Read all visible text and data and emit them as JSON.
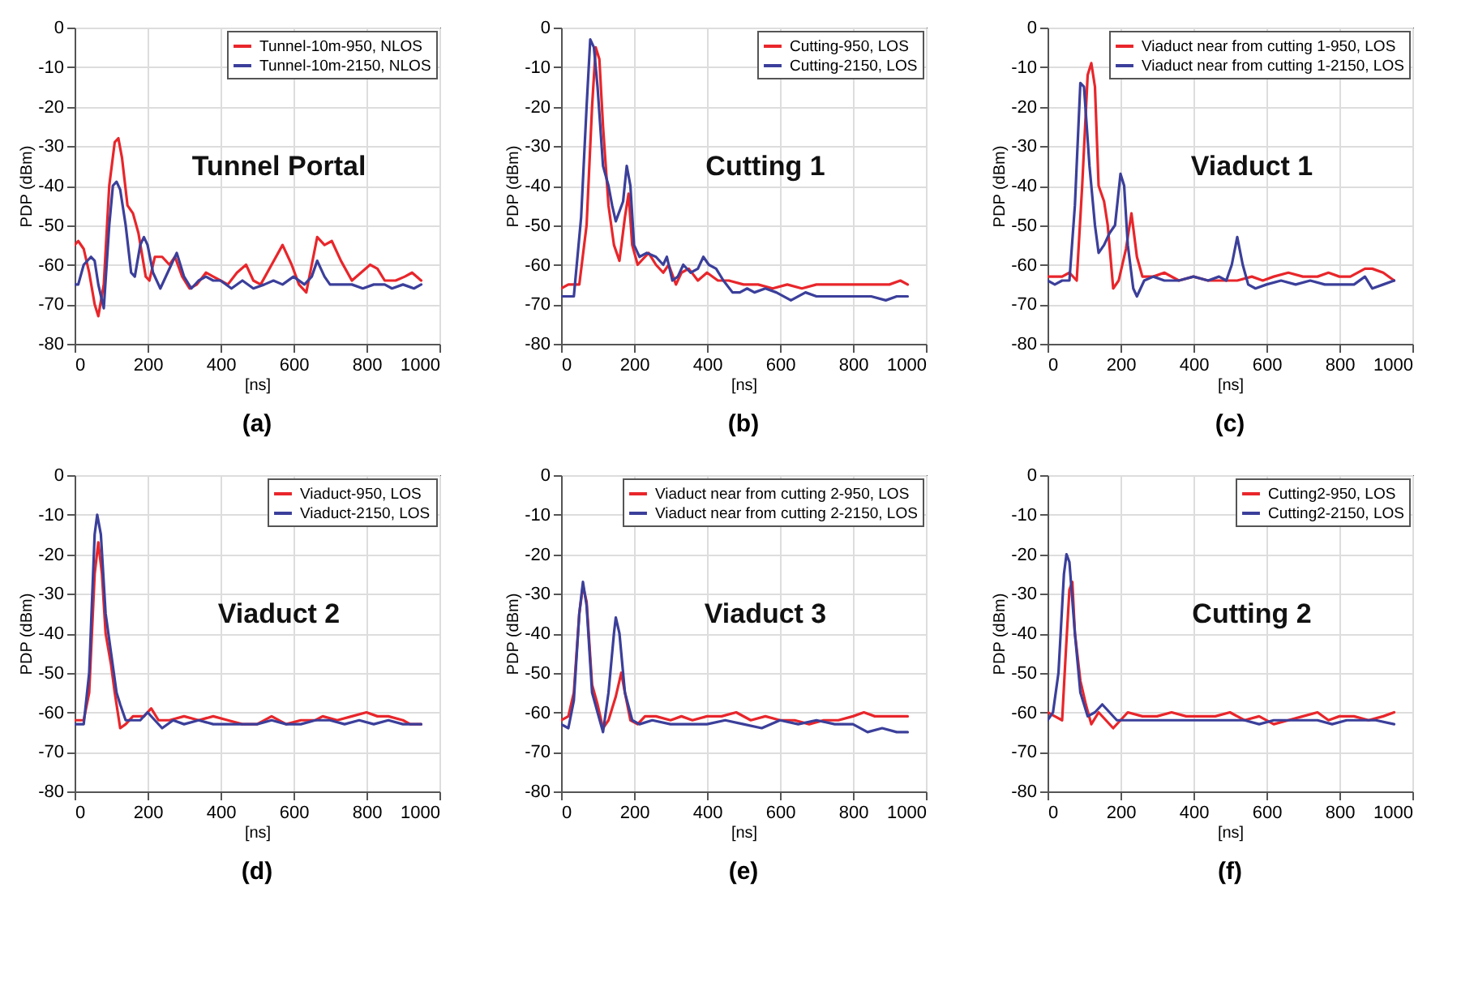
{
  "chart_data": [
    {
      "type": "line",
      "title": "(a)",
      "xlabel": "[ns]",
      "ylabel": "PDP (dBm)",
      "xlim": [
        0,
        1000
      ],
      "ylim": [
        -80,
        0
      ],
      "xticks": [
        0,
        200,
        400,
        600,
        800,
        1000
      ],
      "yticks": [
        -80,
        -70,
        -60,
        -50,
        -40,
        -30,
        -20,
        -10,
        0
      ],
      "grid": true,
      "legend": "top right",
      "annotations": [
        "Tunnel Portal"
      ],
      "series": [
        {
          "name": "Tunnel-10m-950, NLOS",
          "color": "#e8262b",
          "x": [
            0,
            10,
            25,
            40,
            55,
            65,
            80,
            95,
            110,
            120,
            130,
            145,
            160,
            175,
            195,
            205,
            220,
            240,
            260,
            275,
            295,
            315,
            335,
            360,
            380,
            400,
            420,
            445,
            470,
            490,
            510,
            540,
            570,
            595,
            615,
            635,
            650,
            665,
            685,
            705,
            730,
            760,
            785,
            810,
            830,
            850,
            880,
            905,
            925,
            950
          ],
          "values": [
            -55,
            -54,
            -56,
            -62,
            -70,
            -73,
            -65,
            -40,
            -29,
            -28,
            -33,
            -45,
            -47,
            -52,
            -63,
            -64,
            -58,
            -58,
            -60,
            -58,
            -63,
            -66,
            -65,
            -62,
            -63,
            -64,
            -65,
            -62,
            -60,
            -64,
            -65,
            -60,
            -55,
            -60,
            -65,
            -67,
            -60,
            -53,
            -55,
            -54,
            -59,
            -64,
            -62,
            -60,
            -61,
            -64,
            -64,
            -63,
            -62,
            -64
          ]
        },
        {
          "name": "Tunnel-10m-2150, NLOS",
          "color": "#3b3f9a",
          "x": [
            0,
            10,
            25,
            45,
            55,
            65,
            80,
            95,
            105,
            115,
            125,
            140,
            155,
            165,
            180,
            190,
            200,
            215,
            235,
            255,
            280,
            300,
            320,
            340,
            360,
            380,
            400,
            430,
            460,
            490,
            520,
            545,
            570,
            600,
            630,
            650,
            665,
            685,
            700,
            730,
            760,
            790,
            820,
            850,
            870,
            900,
            930,
            950
          ],
          "values": [
            -65,
            -65,
            -60,
            -58,
            -59,
            -65,
            -71,
            -50,
            -40,
            -39,
            -41,
            -50,
            -62,
            -63,
            -55,
            -53,
            -55,
            -62,
            -66,
            -62,
            -57,
            -63,
            -66,
            -64,
            -63,
            -64,
            -64,
            -66,
            -64,
            -66,
            -65,
            -64,
            -65,
            -63,
            -65,
            -63,
            -59,
            -63,
            -65,
            -65,
            -65,
            -66,
            -65,
            -65,
            -66,
            -65,
            -66,
            -65
          ]
        }
      ]
    },
    {
      "type": "line",
      "title": "(b)",
      "xlabel": "[ns]",
      "ylabel": "PDP (dBm)",
      "xlim": [
        0,
        1000
      ],
      "ylim": [
        -80,
        0
      ],
      "xticks": [
        0,
        200,
        400,
        600,
        800,
        1000
      ],
      "yticks": [
        -80,
        -70,
        -60,
        -50,
        -40,
        -30,
        -20,
        -10,
        0
      ],
      "grid": true,
      "legend": "top right",
      "annotations": [
        "Cutting 1"
      ],
      "series": [
        {
          "name": "Cutting-950, LOS",
          "color": "#e8262b",
          "x": [
            0,
            20,
            50,
            70,
            85,
            95,
            105,
            115,
            130,
            145,
            160,
            175,
            185,
            195,
            210,
            230,
            240,
            260,
            280,
            295,
            315,
            330,
            350,
            375,
            400,
            430,
            460,
            500,
            540,
            580,
            620,
            660,
            700,
            750,
            800,
            850,
            900,
            930,
            950
          ],
          "values": [
            -66,
            -65,
            -65,
            -50,
            -20,
            -5,
            -8,
            -25,
            -45,
            -55,
            -59,
            -48,
            -42,
            -55,
            -60,
            -58,
            -57,
            -60,
            -62,
            -60,
            -65,
            -62,
            -61,
            -64,
            -62,
            -64,
            -64,
            -65,
            -65,
            -66,
            -65,
            -66,
            -65,
            -65,
            -65,
            -65,
            -65,
            -64,
            -65
          ]
        },
        {
          "name": "Cutting-2150, LOS",
          "color": "#3b3f9a",
          "x": [
            0,
            20,
            35,
            55,
            70,
            80,
            90,
            100,
            115,
            130,
            140,
            150,
            170,
            180,
            190,
            200,
            215,
            235,
            260,
            280,
            290,
            305,
            320,
            335,
            355,
            375,
            390,
            405,
            425,
            445,
            470,
            490,
            510,
            530,
            560,
            590,
            630,
            670,
            700,
            750,
            800,
            850,
            890,
            920,
            950
          ],
          "values": [
            -68,
            -68,
            -68,
            -48,
            -20,
            -3,
            -5,
            -15,
            -35,
            -40,
            -45,
            -49,
            -44,
            -35,
            -40,
            -55,
            -58,
            -57,
            -58,
            -60,
            -58,
            -64,
            -63,
            -60,
            -62,
            -61,
            -58,
            -60,
            -61,
            -64,
            -67,
            -67,
            -66,
            -67,
            -66,
            -67,
            -69,
            -67,
            -68,
            -68,
            -68,
            -68,
            -69,
            -68,
            -68
          ]
        }
      ]
    },
    {
      "type": "line",
      "title": "(c)",
      "xlabel": "[ns]",
      "ylabel": "PDP (dBm)",
      "xlim": [
        0,
        1000
      ],
      "ylim": [
        -80,
        0
      ],
      "xticks": [
        0,
        200,
        400,
        600,
        800,
        1000
      ],
      "yticks": [
        -80,
        -70,
        -60,
        -50,
        -40,
        -30,
        -20,
        -10,
        0
      ],
      "grid": true,
      "legend": "top right",
      "annotations": [
        "Viaduct 1"
      ],
      "series": [
        {
          "name": "Viaduct near from cutting 1-950, LOS",
          "color": "#e8262b",
          "x": [
            0,
            40,
            60,
            80,
            95,
            110,
            120,
            130,
            140,
            155,
            165,
            180,
            195,
            215,
            230,
            245,
            260,
            290,
            320,
            360,
            400,
            440,
            480,
            520,
            560,
            590,
            620,
            660,
            700,
            740,
            770,
            800,
            830,
            870,
            890,
            920,
            950
          ],
          "values": [
            -63,
            -63,
            -62,
            -64,
            -40,
            -12,
            -9,
            -15,
            -40,
            -44,
            -50,
            -66,
            -64,
            -56,
            -47,
            -58,
            -63,
            -63,
            -62,
            -64,
            -63,
            -64,
            -64,
            -64,
            -63,
            -64,
            -63,
            -62,
            -63,
            -63,
            -62,
            -63,
            -63,
            -61,
            -61,
            -62,
            -64
          ]
        },
        {
          "name": "Viaduct near from cutting 1-2150, LOS",
          "color": "#3b3f9a",
          "x": [
            0,
            20,
            40,
            60,
            75,
            90,
            100,
            115,
            130,
            140,
            155,
            170,
            185,
            200,
            210,
            220,
            235,
            245,
            265,
            290,
            320,
            360,
            400,
            440,
            470,
            490,
            505,
            520,
            535,
            550,
            570,
            600,
            640,
            680,
            720,
            760,
            800,
            840,
            870,
            890,
            920,
            950
          ],
          "values": [
            -64,
            -65,
            -64,
            -64,
            -45,
            -14,
            -15,
            -35,
            -50,
            -57,
            -55,
            -52,
            -50,
            -37,
            -40,
            -55,
            -66,
            -68,
            -64,
            -63,
            -64,
            -64,
            -63,
            -64,
            -63,
            -64,
            -60,
            -53,
            -60,
            -65,
            -66,
            -65,
            -64,
            -65,
            -64,
            -65,
            -65,
            -65,
            -63,
            -66,
            -65,
            -64
          ]
        }
      ]
    },
    {
      "type": "line",
      "title": "(d)",
      "xlabel": "[ns]",
      "ylabel": "PDP (dBm)",
      "xlim": [
        0,
        1000
      ],
      "ylim": [
        -80,
        0
      ],
      "xticks": [
        0,
        200,
        400,
        600,
        800,
        1000
      ],
      "yticks": [
        -80,
        -70,
        -60,
        -50,
        -40,
        -30,
        -20,
        -10,
        0
      ],
      "grid": true,
      "legend": "top right",
      "annotations": [
        "Viaduct 2"
      ],
      "series": [
        {
          "name": "Viaduct-950, LOS",
          "color": "#e8262b",
          "x": [
            0,
            25,
            40,
            55,
            65,
            75,
            85,
            100,
            110,
            125,
            140,
            160,
            190,
            210,
            230,
            260,
            300,
            340,
            380,
            420,
            460,
            500,
            540,
            580,
            620,
            660,
            680,
            720,
            760,
            800,
            830,
            860,
            900,
            920,
            950
          ],
          "values": [
            -62,
            -62,
            -55,
            -25,
            -17,
            -25,
            -40,
            -48,
            -55,
            -64,
            -63,
            -61,
            -61,
            -59,
            -62,
            -62,
            -61,
            -62,
            -61,
            -62,
            -63,
            -63,
            -61,
            -63,
            -62,
            -62,
            -61,
            -62,
            -61,
            -60,
            -61,
            -61,
            -62,
            -63,
            -63
          ]
        },
        {
          "name": "Viaduct-2150, LOS",
          "color": "#3b3f9a",
          "x": [
            0,
            25,
            40,
            55,
            62,
            72,
            85,
            100,
            115,
            125,
            140,
            160,
            180,
            200,
            220,
            240,
            270,
            300,
            340,
            380,
            420,
            460,
            500,
            540,
            580,
            620,
            660,
            700,
            740,
            780,
            820,
            860,
            900,
            950
          ],
          "values": [
            -63,
            -63,
            -50,
            -15,
            -10,
            -15,
            -35,
            -45,
            -55,
            -58,
            -62,
            -62,
            -62,
            -60,
            -62,
            -64,
            -62,
            -63,
            -62,
            -63,
            -63,
            -63,
            -63,
            -62,
            -63,
            -63,
            -62,
            -62,
            -63,
            -62,
            -63,
            -62,
            -63,
            -63
          ]
        }
      ]
    },
    {
      "type": "line",
      "title": "(e)",
      "xlabel": "[ns]",
      "ylabel": "PDP (dBm)",
      "xlim": [
        0,
        1000
      ],
      "ylim": [
        -80,
        0
      ],
      "xticks": [
        0,
        200,
        400,
        600,
        800,
        1000
      ],
      "yticks": [
        -80,
        -70,
        -60,
        -50,
        -40,
        -30,
        -20,
        -10,
        0
      ],
      "grid": true,
      "legend": "top right",
      "annotations": [
        "Viaduct 3"
      ],
      "series": [
        {
          "name": "Viaduct near from cutting 2-950, LOS",
          "color": "#e8262b",
          "x": [
            0,
            20,
            35,
            50,
            60,
            70,
            85,
            100,
            115,
            130,
            150,
            165,
            175,
            190,
            210,
            230,
            260,
            300,
            330,
            360,
            400,
            440,
            480,
            520,
            560,
            600,
            640,
            680,
            720,
            760,
            800,
            830,
            860,
            900,
            950
          ],
          "values": [
            -62,
            -61,
            -55,
            -35,
            -28,
            -32,
            -53,
            -58,
            -64,
            -62,
            -56,
            -50,
            -55,
            -62,
            -63,
            -61,
            -61,
            -62,
            -61,
            -62,
            -61,
            -61,
            -60,
            -62,
            -61,
            -62,
            -62,
            -63,
            -62,
            -62,
            -61,
            -60,
            -61,
            -61,
            -61
          ]
        },
        {
          "name": "Viaduct near from cutting 2-2150, LOS",
          "color": "#3b3f9a",
          "x": [
            0,
            20,
            35,
            50,
            60,
            70,
            85,
            100,
            115,
            130,
            145,
            150,
            160,
            175,
            195,
            215,
            250,
            300,
            350,
            400,
            450,
            500,
            550,
            600,
            650,
            700,
            750,
            800,
            840,
            880,
            920,
            950
          ],
          "values": [
            -63,
            -64,
            -57,
            -35,
            -27,
            -33,
            -55,
            -60,
            -65,
            -55,
            -40,
            -36,
            -40,
            -55,
            -62,
            -63,
            -62,
            -63,
            -63,
            -63,
            -62,
            -63,
            -64,
            -62,
            -63,
            -62,
            -63,
            -63,
            -65,
            -64,
            -65,
            -65
          ]
        }
      ]
    },
    {
      "type": "line",
      "title": "(f)",
      "xlabel": "[ns]",
      "ylabel": "PDP (dBm)",
      "xlim": [
        0,
        1000
      ],
      "ylim": [
        -80,
        0
      ],
      "xticks": [
        0,
        200,
        400,
        600,
        800,
        1000
      ],
      "yticks": [
        -80,
        -70,
        -60,
        -50,
        -40,
        -30,
        -20,
        -10,
        0
      ],
      "grid": true,
      "legend": "top right",
      "annotations": [
        "Cutting 2"
      ],
      "series": [
        {
          "name": "Cutting2-950, LOS",
          "color": "#e8262b",
          "x": [
            0,
            20,
            40,
            50,
            60,
            68,
            75,
            90,
            105,
            120,
            140,
            160,
            180,
            200,
            220,
            260,
            300,
            340,
            380,
            420,
            460,
            500,
            540,
            580,
            620,
            660,
            700,
            740,
            770,
            800,
            840,
            880,
            920,
            950
          ],
          "values": [
            -60,
            -61,
            -62,
            -45,
            -29,
            -27,
            -40,
            -52,
            -58,
            -63,
            -60,
            -62,
            -64,
            -62,
            -60,
            -61,
            -61,
            -60,
            -61,
            -61,
            -61,
            -60,
            -62,
            -61,
            -63,
            -62,
            -61,
            -60,
            -62,
            -61,
            -61,
            -62,
            -61,
            -60
          ]
        },
        {
          "name": "Cutting2-2150, LOS",
          "color": "#3b3f9a",
          "x": [
            0,
            15,
            30,
            45,
            52,
            60,
            75,
            90,
            110,
            130,
            150,
            170,
            190,
            220,
            260,
            300,
            340,
            380,
            420,
            460,
            500,
            540,
            580,
            620,
            660,
            700,
            740,
            780,
            820,
            860,
            900,
            950
          ],
          "values": [
            -62,
            -60,
            -50,
            -25,
            -20,
            -22,
            -40,
            -55,
            -61,
            -60,
            -58,
            -60,
            -62,
            -62,
            -62,
            -62,
            -62,
            -62,
            -62,
            -62,
            -62,
            -62,
            -63,
            -62,
            -62,
            -62,
            -62,
            -63,
            -62,
            -62,
            -62,
            -63
          ]
        }
      ]
    }
  ]
}
